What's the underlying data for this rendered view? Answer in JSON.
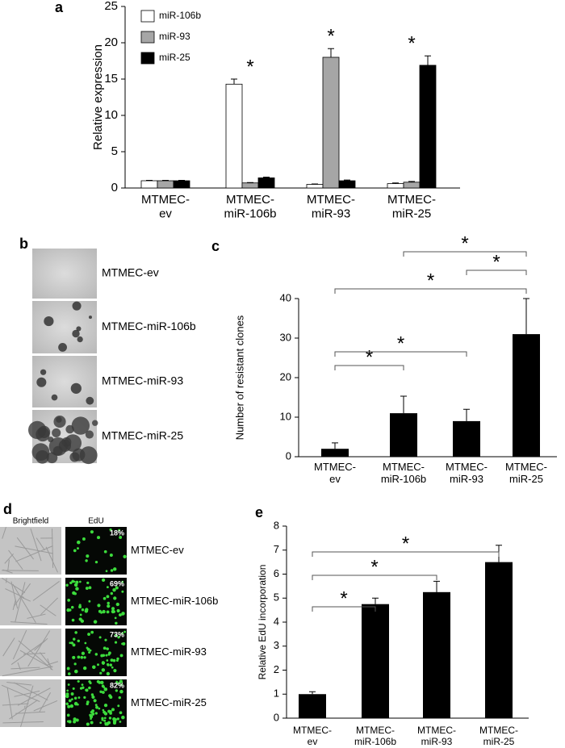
{
  "panels": {
    "labels": [
      "a",
      "b",
      "c",
      "d",
      "e"
    ],
    "b": {
      "rows": [
        "MTMEC-ev",
        "MTMEC-miR-106b",
        "MTMEC-miR-93",
        "MTMEC-miR-25"
      ]
    },
    "d": {
      "headers": [
        "Brightfield",
        "EdU"
      ],
      "rows": [
        "MTMEC-ev",
        "MTMEC-miR-106b",
        "MTMEC-miR-93",
        "MTMEC-miR-25"
      ],
      "percent": [
        "18%",
        "69%",
        "73%",
        "82%"
      ]
    }
  },
  "chart_data": [
    {
      "type": "bar",
      "y_label": "Relative expression",
      "categories": [
        "MTMEC-\nev",
        "MTMEC-\nmiR-106b",
        "MTMEC-\nmiR-93",
        "MTMEC-\nmiR-25"
      ],
      "series": [
        {
          "name": "miR-106b",
          "color": "#ffffff",
          "values": [
            1,
            14.3,
            0.5,
            0.6
          ],
          "errors": [
            0.05,
            0.7,
            0.05,
            0.1
          ]
        },
        {
          "name": "miR-93",
          "color": "#a6a6a6",
          "values": [
            1,
            0.7,
            18,
            0.8
          ],
          "errors": [
            0.05,
            0.05,
            1.2,
            0.1
          ]
        },
        {
          "name": "miR-25",
          "color": "#000000",
          "values": [
            1,
            1.4,
            1,
            16.9
          ],
          "errors": [
            0.05,
            0.1,
            0.1,
            1.3
          ]
        }
      ],
      "annotations": [
        {
          "category": 1,
          "text": "*"
        },
        {
          "category": 2,
          "text": "*"
        },
        {
          "category": 3,
          "text": "*"
        }
      ],
      "ylim": [
        0,
        25
      ],
      "yticks": [
        0,
        5,
        10,
        15,
        20,
        25
      ],
      "grid": false,
      "legend": "upper-left"
    },
    {
      "type": "bar",
      "y_label": "Number of resistant clones",
      "categories": [
        "MTMEC-\nev",
        "MTMEC-\nmiR-106b",
        "MTMEC-\nmiR-93",
        "MTMEC-\nmiR-25"
      ],
      "values": [
        2,
        11,
        9,
        31
      ],
      "errors": [
        1.5,
        4.3,
        3,
        9
      ],
      "color": "#000000",
      "brackets": [
        {
          "from": 0,
          "to": 1,
          "text": "*"
        },
        {
          "from": 0,
          "to": 2,
          "text": "*"
        },
        {
          "from": 0,
          "to": 3,
          "text": "*"
        },
        {
          "from": 2,
          "to": 3,
          "text": "*"
        },
        {
          "from": 1,
          "to": 3,
          "text": "*"
        }
      ],
      "ylim": [
        0,
        40
      ],
      "yticks": [
        0,
        10,
        20,
        30,
        40
      ],
      "grid": false
    },
    {
      "type": "bar",
      "y_label": "Relative EdU incorporation",
      "categories": [
        "MTMEC-\nev",
        "MTMEC-\nmiR-106b",
        "MTMEC-\nmiR-93",
        "MTMEC-\nmiR-25"
      ],
      "values": [
        1,
        4.75,
        5.25,
        6.5
      ],
      "errors": [
        0.1,
        0.25,
        0.45,
        0.7
      ],
      "color": "#000000",
      "brackets": [
        {
          "from": 0,
          "to": 1,
          "text": "*"
        },
        {
          "from": 0,
          "to": 2,
          "text": "*"
        },
        {
          "from": 0,
          "to": 3,
          "text": "*"
        }
      ],
      "ylim": [
        0,
        8
      ],
      "yticks": [
        0,
        1,
        2,
        3,
        4,
        5,
        6,
        7,
        8
      ],
      "grid": false
    }
  ]
}
